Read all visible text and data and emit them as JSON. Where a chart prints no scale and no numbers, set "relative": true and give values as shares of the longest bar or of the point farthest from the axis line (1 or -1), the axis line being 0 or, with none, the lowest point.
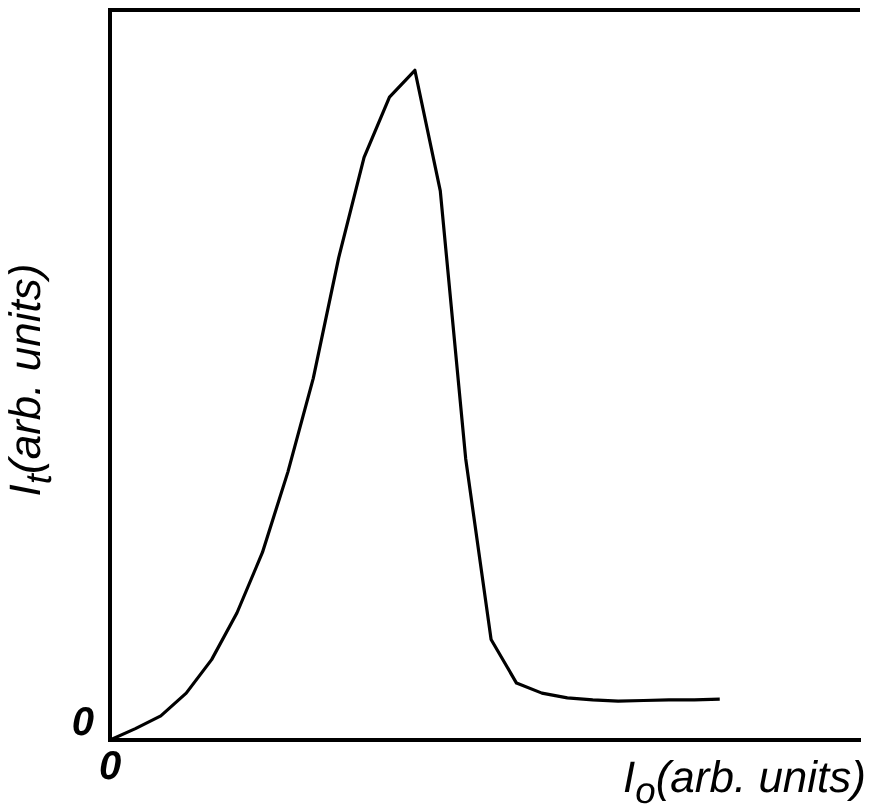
{
  "chart_data": {
    "type": "line",
    "relative": true,
    "xlabel": "I$_{o}$(arb. units)",
    "ylabel": "I$_{t}$(arb. units)",
    "annotations": [
      "0",
      "0"
    ],
    "grid": false,
    "legend": false,
    "marker": "none",
    "line_style": "solid",
    "categories": [
      null,
      null,
      null,
      null,
      null,
      null,
      null,
      null,
      null,
      null,
      null,
      null,
      null,
      null,
      null,
      null,
      null,
      null,
      null,
      null,
      null,
      null,
      null,
      null,
      null
    ],
    "series": [
      {
        "color": "#000000",
        "values": [
          0,
          0.017,
          0.036,
          0.07,
          0.12,
          0.19,
          0.28,
          0.4,
          0.54,
          0.72,
          0.87,
          0.96,
          1,
          0.82,
          0.42,
          0.15,
          0.085,
          0.07,
          0.063,
          0.06,
          0.058,
          0.059,
          0.06,
          0.06,
          0.061
        ]
      }
    ]
  }
}
